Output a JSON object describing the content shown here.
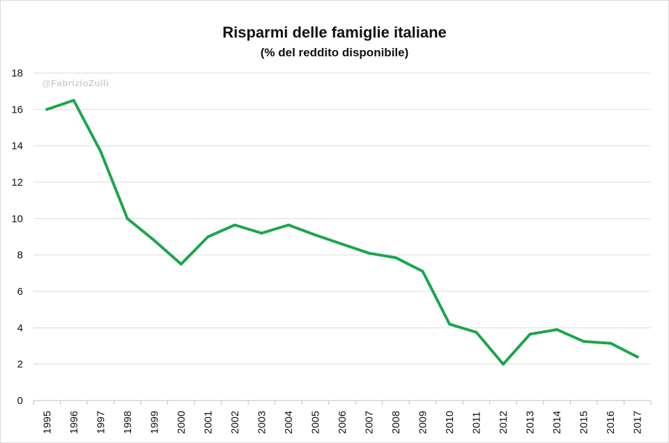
{
  "chart_data": {
    "type": "line",
    "title": "Risparmi delle famiglie italiane",
    "subtitle": "(% del reddito disponibile)",
    "watermark": "@FabrizioZulli",
    "xlabel": "",
    "ylabel": "",
    "ylim": [
      0,
      18
    ],
    "yticks": [
      0,
      2,
      4,
      6,
      8,
      10,
      12,
      14,
      16,
      18
    ],
    "grid": true,
    "line_color": "#1aa64a",
    "x": [
      "1995",
      "1996",
      "1997",
      "1998",
      "1999",
      "2000",
      "2001",
      "2002",
      "2003",
      "2004",
      "2005",
      "2006",
      "2007",
      "2008",
      "2009",
      "2010",
      "2011",
      "2012",
      "2013",
      "2014",
      "2015",
      "2016",
      "2017"
    ],
    "series": [
      {
        "values": [
          16.0,
          16.5,
          13.7,
          10.0,
          8.8,
          7.5,
          9.0,
          9.65,
          9.2,
          9.65,
          9.1,
          8.6,
          8.1,
          7.85,
          7.1,
          4.2,
          3.75,
          2.0,
          3.65,
          3.9,
          3.25,
          3.15,
          2.4
        ]
      }
    ]
  }
}
